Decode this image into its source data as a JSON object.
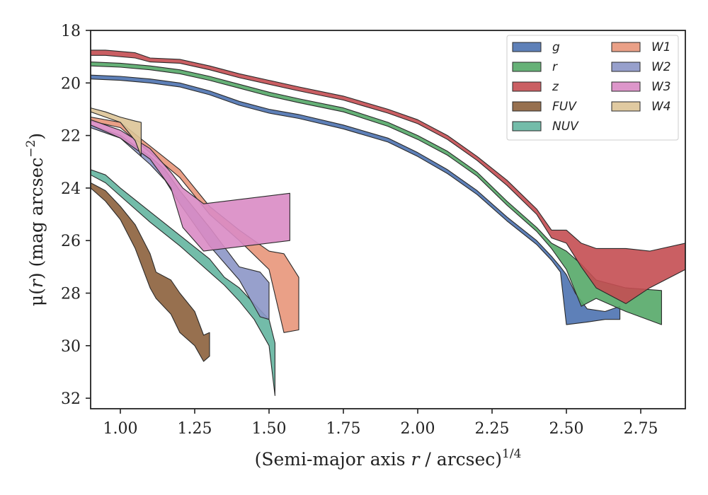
{
  "chart_data": {
    "type": "area",
    "title": "",
    "xlabel": "(Semi-major axis r / arcsec)^{1/4}",
    "xlabel_parts": {
      "pre": "(Semi-major axis ",
      "var": "r",
      "post": " / arcsec)",
      "sup": "1/4"
    },
    "ylabel": "μ(r) (mag arcsec^{-2})",
    "ylabel_parts": {
      "mu": "μ(",
      "var": "r",
      "close": ") (mag arcsec",
      "sup": "−2",
      "end": ")"
    },
    "xlim": [
      0.9,
      2.9
    ],
    "ylim": [
      32.4,
      18
    ],
    "y_inverted": true,
    "xticks": [
      1.0,
      1.25,
      1.5,
      1.75,
      2.0,
      2.25,
      2.5,
      2.75
    ],
    "xtick_labels": [
      "1.00",
      "1.25",
      "1.50",
      "1.75",
      "2.00",
      "2.25",
      "2.50",
      "2.75"
    ],
    "yticks": [
      18,
      20,
      22,
      24,
      26,
      28,
      30,
      32
    ],
    "ytick_labels": [
      "18",
      "20",
      "22",
      "24",
      "26",
      "28",
      "30",
      "32"
    ],
    "grid": false,
    "legend_position": "top-right",
    "legend_columns": 2,
    "series": [
      {
        "name": "g",
        "color": "#4c72b0",
        "upper": [
          [
            0.9,
            19.7
          ],
          [
            1.0,
            19.75
          ],
          [
            1.1,
            19.85
          ],
          [
            1.2,
            20.0
          ],
          [
            1.3,
            20.3
          ],
          [
            1.4,
            20.7
          ],
          [
            1.5,
            21.0
          ],
          [
            1.6,
            21.2
          ],
          [
            1.75,
            21.6
          ],
          [
            1.9,
            22.1
          ],
          [
            2.0,
            22.65
          ],
          [
            2.1,
            23.3
          ],
          [
            2.2,
            24.1
          ],
          [
            2.3,
            25.1
          ],
          [
            2.4,
            26.0
          ],
          [
            2.45,
            26.6
          ],
          [
            2.48,
            27.0
          ],
          [
            2.5,
            27.3
          ],
          [
            2.53,
            28.0
          ],
          [
            2.57,
            28.6
          ],
          [
            2.63,
            28.7
          ],
          [
            2.68,
            28.5
          ]
        ],
        "lower": [
          [
            0.9,
            19.85
          ],
          [
            1.0,
            19.9
          ],
          [
            1.1,
            20.0
          ],
          [
            1.2,
            20.15
          ],
          [
            1.3,
            20.45
          ],
          [
            1.4,
            20.85
          ],
          [
            1.5,
            21.15
          ],
          [
            1.6,
            21.35
          ],
          [
            1.75,
            21.75
          ],
          [
            1.9,
            22.25
          ],
          [
            2.0,
            22.8
          ],
          [
            2.1,
            23.45
          ],
          [
            2.2,
            24.25
          ],
          [
            2.3,
            25.25
          ],
          [
            2.4,
            26.15
          ],
          [
            2.45,
            26.75
          ],
          [
            2.48,
            27.2
          ],
          [
            2.5,
            29.2
          ],
          [
            2.57,
            29.1
          ],
          [
            2.63,
            29.0
          ],
          [
            2.68,
            29.0
          ]
        ]
      },
      {
        "name": "r",
        "color": "#55a868",
        "upper": [
          [
            0.9,
            19.2
          ],
          [
            1.0,
            19.25
          ],
          [
            1.1,
            19.35
          ],
          [
            1.2,
            19.5
          ],
          [
            1.3,
            19.75
          ],
          [
            1.4,
            20.05
          ],
          [
            1.5,
            20.35
          ],
          [
            1.6,
            20.6
          ],
          [
            1.75,
            20.95
          ],
          [
            1.9,
            21.5
          ],
          [
            2.0,
            22.0
          ],
          [
            2.1,
            22.6
          ],
          [
            2.2,
            23.4
          ],
          [
            2.3,
            24.5
          ],
          [
            2.4,
            25.5
          ],
          [
            2.45,
            26.1
          ],
          [
            2.5,
            26.4
          ],
          [
            2.55,
            26.9
          ],
          [
            2.6,
            27.5
          ],
          [
            2.7,
            27.8
          ],
          [
            2.82,
            27.9
          ]
        ],
        "lower": [
          [
            0.9,
            19.35
          ],
          [
            1.0,
            19.4
          ],
          [
            1.1,
            19.5
          ],
          [
            1.2,
            19.65
          ],
          [
            1.3,
            19.9
          ],
          [
            1.4,
            20.2
          ],
          [
            1.5,
            20.5
          ],
          [
            1.6,
            20.75
          ],
          [
            1.75,
            21.1
          ],
          [
            1.9,
            21.65
          ],
          [
            2.0,
            22.15
          ],
          [
            2.1,
            22.75
          ],
          [
            2.2,
            23.55
          ],
          [
            2.3,
            24.65
          ],
          [
            2.4,
            25.65
          ],
          [
            2.45,
            26.3
          ],
          [
            2.5,
            27.1
          ],
          [
            2.55,
            28.5
          ],
          [
            2.6,
            28.2
          ],
          [
            2.7,
            28.7
          ],
          [
            2.82,
            29.2
          ]
        ]
      },
      {
        "name": "z",
        "color": "#c44e52",
        "upper": [
          [
            0.9,
            18.75
          ],
          [
            0.95,
            18.75
          ],
          [
            1.05,
            18.85
          ],
          [
            1.1,
            19.05
          ],
          [
            1.2,
            19.1
          ],
          [
            1.3,
            19.35
          ],
          [
            1.4,
            19.65
          ],
          [
            1.5,
            19.9
          ],
          [
            1.6,
            20.15
          ],
          [
            1.75,
            20.5
          ],
          [
            1.9,
            21.0
          ],
          [
            2.0,
            21.4
          ],
          [
            2.1,
            22.0
          ],
          [
            2.2,
            22.8
          ],
          [
            2.3,
            23.7
          ],
          [
            2.4,
            24.8
          ],
          [
            2.45,
            25.6
          ],
          [
            2.5,
            25.6
          ],
          [
            2.55,
            26.1
          ],
          [
            2.6,
            26.3
          ],
          [
            2.7,
            26.3
          ],
          [
            2.78,
            26.4
          ],
          [
            2.9,
            26.1
          ]
        ],
        "lower": [
          [
            0.9,
            18.95
          ],
          [
            0.95,
            18.95
          ],
          [
            1.05,
            19.05
          ],
          [
            1.1,
            19.2
          ],
          [
            1.2,
            19.25
          ],
          [
            1.3,
            19.5
          ],
          [
            1.4,
            19.8
          ],
          [
            1.5,
            20.05
          ],
          [
            1.6,
            20.3
          ],
          [
            1.75,
            20.65
          ],
          [
            1.9,
            21.15
          ],
          [
            2.0,
            21.55
          ],
          [
            2.1,
            22.15
          ],
          [
            2.2,
            22.95
          ],
          [
            2.3,
            23.9
          ],
          [
            2.4,
            25.0
          ],
          [
            2.45,
            25.9
          ],
          [
            2.5,
            26.1
          ],
          [
            2.55,
            27.0
          ],
          [
            2.6,
            27.8
          ],
          [
            2.7,
            28.4
          ],
          [
            2.78,
            27.8
          ],
          [
            2.9,
            27.1
          ]
        ]
      },
      {
        "name": "FUV",
        "color": "#8c613c",
        "upper": [
          [
            0.9,
            23.8
          ],
          [
            0.95,
            24.1
          ],
          [
            1.0,
            24.7
          ],
          [
            1.05,
            25.4
          ],
          [
            1.1,
            26.5
          ],
          [
            1.12,
            27.2
          ],
          [
            1.17,
            27.5
          ],
          [
            1.2,
            28.0
          ],
          [
            1.25,
            28.7
          ],
          [
            1.28,
            29.6
          ],
          [
            1.3,
            29.5
          ]
        ],
        "lower": [
          [
            0.9,
            24.0
          ],
          [
            0.95,
            24.5
          ],
          [
            1.0,
            25.2
          ],
          [
            1.05,
            26.3
          ],
          [
            1.1,
            27.8
          ],
          [
            1.12,
            28.2
          ],
          [
            1.17,
            28.8
          ],
          [
            1.2,
            29.5
          ],
          [
            1.25,
            30.0
          ],
          [
            1.28,
            30.6
          ],
          [
            1.3,
            30.4
          ]
        ]
      },
      {
        "name": "NUV",
        "color": "#64b5a0",
        "upper": [
          [
            0.9,
            23.3
          ],
          [
            0.95,
            23.5
          ],
          [
            1.0,
            24.0
          ],
          [
            1.1,
            24.9
          ],
          [
            1.2,
            25.8
          ],
          [
            1.3,
            26.7
          ],
          [
            1.35,
            27.4
          ],
          [
            1.4,
            27.8
          ],
          [
            1.45,
            28.4
          ],
          [
            1.5,
            29.0
          ],
          [
            1.52,
            29.9
          ]
        ],
        "lower": [
          [
            0.9,
            23.5
          ],
          [
            0.95,
            23.8
          ],
          [
            1.0,
            24.3
          ],
          [
            1.1,
            25.3
          ],
          [
            1.2,
            26.2
          ],
          [
            1.3,
            27.2
          ],
          [
            1.35,
            27.7
          ],
          [
            1.4,
            28.3
          ],
          [
            1.45,
            29.0
          ],
          [
            1.5,
            30.0
          ],
          [
            1.52,
            31.9
          ]
        ]
      },
      {
        "name": "W1",
        "color": "#e8967a",
        "upper": [
          [
            0.9,
            21.3
          ],
          [
            1.0,
            21.5
          ],
          [
            1.1,
            22.4
          ],
          [
            1.2,
            23.3
          ],
          [
            1.3,
            24.7
          ],
          [
            1.4,
            25.6
          ],
          [
            1.5,
            26.4
          ],
          [
            1.55,
            26.5
          ],
          [
            1.6,
            27.4
          ]
        ],
        "lower": [
          [
            0.9,
            21.45
          ],
          [
            1.0,
            21.7
          ],
          [
            1.1,
            22.65
          ],
          [
            1.2,
            23.6
          ],
          [
            1.3,
            25.0
          ],
          [
            1.4,
            26.0
          ],
          [
            1.5,
            27.1
          ],
          [
            1.55,
            29.5
          ],
          [
            1.6,
            29.4
          ]
        ]
      },
      {
        "name": "W2",
        "color": "#8c96c6",
        "upper": [
          [
            0.9,
            21.6
          ],
          [
            1.0,
            22.0
          ],
          [
            1.1,
            22.8
          ],
          [
            1.15,
            23.3
          ],
          [
            1.2,
            24.1
          ],
          [
            1.3,
            25.5
          ],
          [
            1.4,
            27.0
          ],
          [
            1.47,
            27.2
          ],
          [
            1.5,
            27.6
          ]
        ],
        "lower": [
          [
            0.9,
            21.7
          ],
          [
            1.0,
            22.1
          ],
          [
            1.1,
            23.1
          ],
          [
            1.15,
            23.7
          ],
          [
            1.2,
            24.6
          ],
          [
            1.3,
            26.2
          ],
          [
            1.4,
            27.5
          ],
          [
            1.47,
            28.9
          ],
          [
            1.5,
            29.0
          ]
        ]
      },
      {
        "name": "W3",
        "color": "#d98bc4",
        "upper": [
          [
            0.9,
            21.4
          ],
          [
            1.0,
            21.8
          ],
          [
            1.1,
            22.5
          ],
          [
            1.17,
            23.4
          ],
          [
            1.21,
            24.0
          ],
          [
            1.28,
            24.6
          ],
          [
            1.57,
            24.2
          ]
        ],
        "lower": [
          [
            0.9,
            21.6
          ],
          [
            1.0,
            22.1
          ],
          [
            1.1,
            22.9
          ],
          [
            1.17,
            24.0
          ],
          [
            1.21,
            25.5
          ],
          [
            1.28,
            26.4
          ],
          [
            1.57,
            26.0
          ]
        ]
      },
      {
        "name": "W4",
        "color": "#ddc497",
        "upper": [
          [
            0.9,
            20.95
          ],
          [
            0.95,
            21.1
          ],
          [
            1.0,
            21.3
          ],
          [
            1.05,
            21.45
          ],
          [
            1.07,
            21.5
          ]
        ],
        "lower": [
          [
            0.9,
            21.1
          ],
          [
            0.95,
            21.3
          ],
          [
            1.0,
            21.5
          ],
          [
            1.05,
            22.2
          ],
          [
            1.07,
            22.8
          ]
        ]
      }
    ]
  }
}
